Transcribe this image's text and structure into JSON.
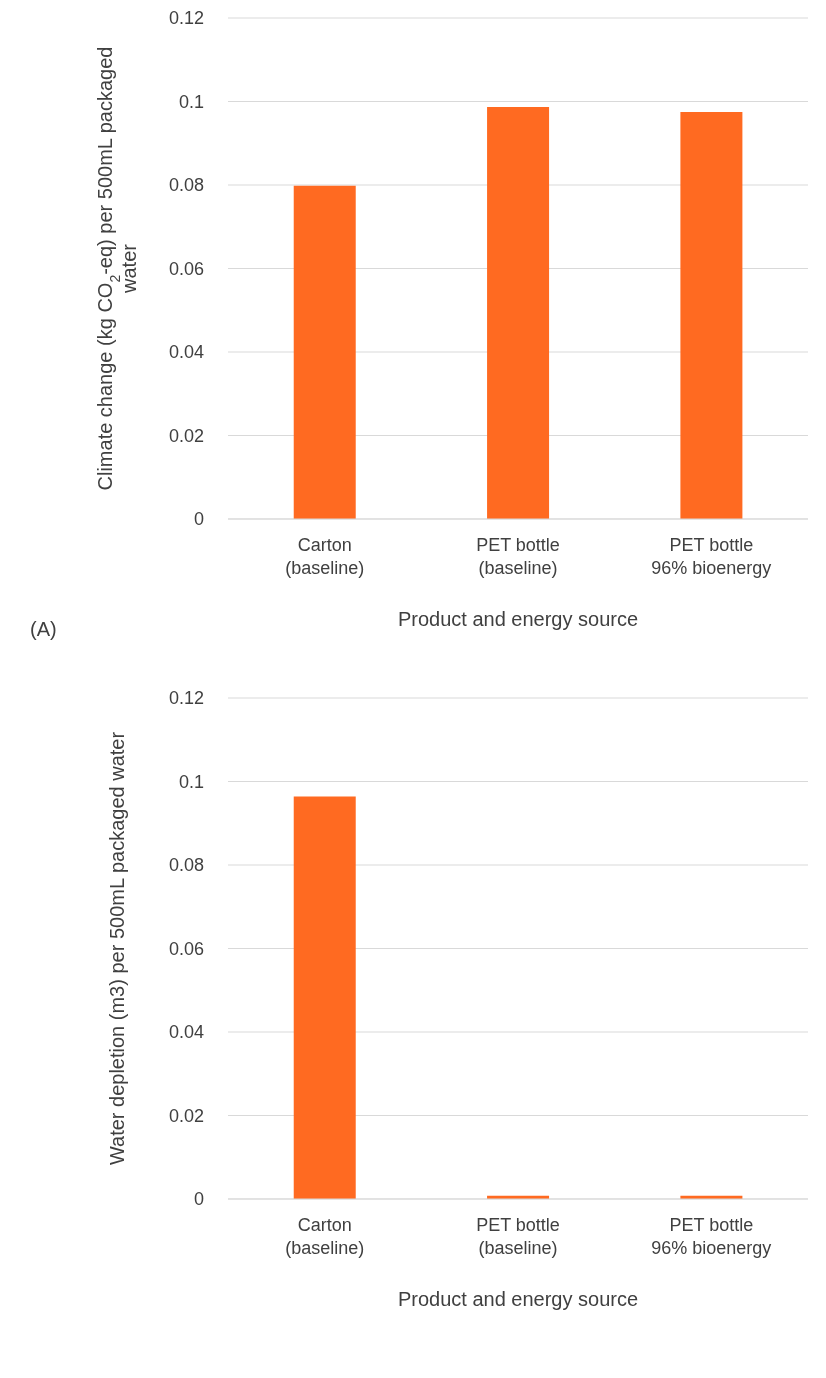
{
  "chart_data": [
    {
      "type": "bar",
      "categories": [
        "Carton\n(baseline)",
        "PET bottle\n(baseline)",
        "PET bottle\n96% bioenergy"
      ],
      "values": [
        0.0798,
        0.0987,
        0.0975
      ],
      "color": "#ff6a21",
      "xlabel": "Product and energy source",
      "ylabel": "Climate change (kg CO$_{2}$-eq) per 500mL packaged water",
      "ylim": [
        0,
        0.12
      ],
      "yticks": [
        0,
        0.02,
        0.04,
        0.06,
        0.08,
        0.1,
        0.12
      ],
      "grid": "y",
      "annotations": [
        "(A)"
      ]
    },
    {
      "type": "bar",
      "categories": [
        "Carton\n(baseline)",
        "PET bottle\n(baseline)",
        "PET bottle\n96% bioenergy"
      ],
      "values": [
        0.0964,
        0.0008,
        0.0008
      ],
      "color": "#ff6a21",
      "xlabel": "Product and energy source",
      "ylabel": "Water depletion (m3) per 500mL packaged water",
      "ylim": [
        0,
        0.12
      ],
      "yticks": [
        0,
        0.02,
        0.04,
        0.06,
        0.08,
        0.1,
        0.12
      ],
      "grid": "y"
    }
  ]
}
